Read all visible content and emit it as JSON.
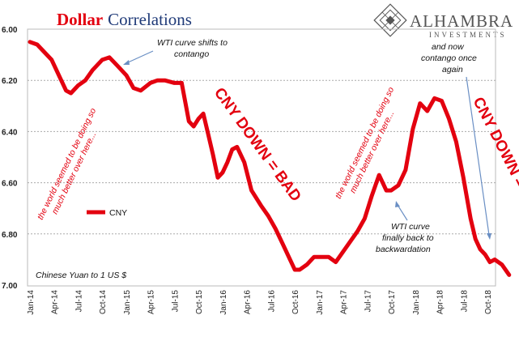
{
  "chart_data": {
    "type": "line",
    "title_part1": "Dollar",
    "title_part2": "Correlations",
    "ylabel": "Chinese Yuan to 1 US $",
    "ylim": [
      6.0,
      7.0
    ],
    "y_inverted": true,
    "y_ticks": [
      "6.00",
      "6.20",
      "6.40",
      "6.60",
      "6.80",
      "7.00"
    ],
    "x_ticks": [
      "Jan-14",
      "Apr-14",
      "Jul-14",
      "Oct-14",
      "Jan-15",
      "Apr-15",
      "Jul-15",
      "Oct-15",
      "Jan-16",
      "Apr-16",
      "Jul-16",
      "Oct-16",
      "Jan-17",
      "Apr-17",
      "Jul-17",
      "Oct-17",
      "Jan-18",
      "Apr-18",
      "Jul-18",
      "Oct-18"
    ],
    "series": [
      {
        "name": "CNY",
        "color": "#e3000f",
        "x": [
          0,
          0.3,
          0.6,
          0.9,
          1.2,
          1.5,
          1.7,
          2.0,
          2.3,
          2.6,
          3.0,
          3.3,
          3.6,
          4.0,
          4.3,
          4.6,
          5.0,
          5.3,
          5.6,
          6.0,
          6.3,
          6.6,
          6.8,
          7.0,
          7.2,
          7.4,
          7.6,
          7.8,
          8.0,
          8.2,
          8.4,
          8.6,
          8.9,
          9.2,
          9.6,
          9.9,
          10.2,
          10.5,
          10.8,
          11.0,
          11.2,
          11.5,
          11.8,
          12.1,
          12.4,
          12.7,
          13.0,
          13.3,
          13.6,
          13.9,
          14.2,
          14.5,
          14.8,
          15.0,
          15.3,
          15.6,
          15.9,
          16.2,
          16.5,
          16.8,
          17.1,
          17.4,
          17.7,
          18.0,
          18.3,
          18.5,
          18.7,
          18.9,
          19.1,
          19.3,
          19.6,
          19.9
        ],
        "y": [
          6.05,
          6.06,
          6.09,
          6.12,
          6.18,
          6.24,
          6.25,
          6.22,
          6.2,
          6.16,
          6.12,
          6.11,
          6.14,
          6.18,
          6.23,
          6.24,
          6.21,
          6.2,
          6.2,
          6.21,
          6.21,
          6.36,
          6.38,
          6.35,
          6.33,
          6.41,
          6.49,
          6.58,
          6.56,
          6.52,
          6.47,
          6.46,
          6.52,
          6.63,
          6.69,
          6.73,
          6.78,
          6.84,
          6.9,
          6.94,
          6.94,
          6.92,
          6.89,
          6.89,
          6.89,
          6.91,
          6.87,
          6.83,
          6.79,
          6.74,
          6.65,
          6.57,
          6.63,
          6.63,
          6.61,
          6.55,
          6.39,
          6.29,
          6.32,
          6.27,
          6.28,
          6.35,
          6.44,
          6.58,
          6.74,
          6.82,
          6.86,
          6.88,
          6.91,
          6.9,
          6.92,
          6.96
        ]
      }
    ],
    "legend": [
      {
        "label": "CNY",
        "position": "left-middle"
      }
    ],
    "annotations": {
      "wti_contango": "WTI curve shifts to contango",
      "wti_backwardation": "WTI curve finally back to backwardation",
      "now_contango": "and now contango once again",
      "world_better": "the world seemed to be doing so much better over here...",
      "cny_down_bad": "CNY DOWN = BAD"
    }
  },
  "brand": {
    "name": "ALHAMBRA",
    "sub": "INVESTMENTS"
  }
}
